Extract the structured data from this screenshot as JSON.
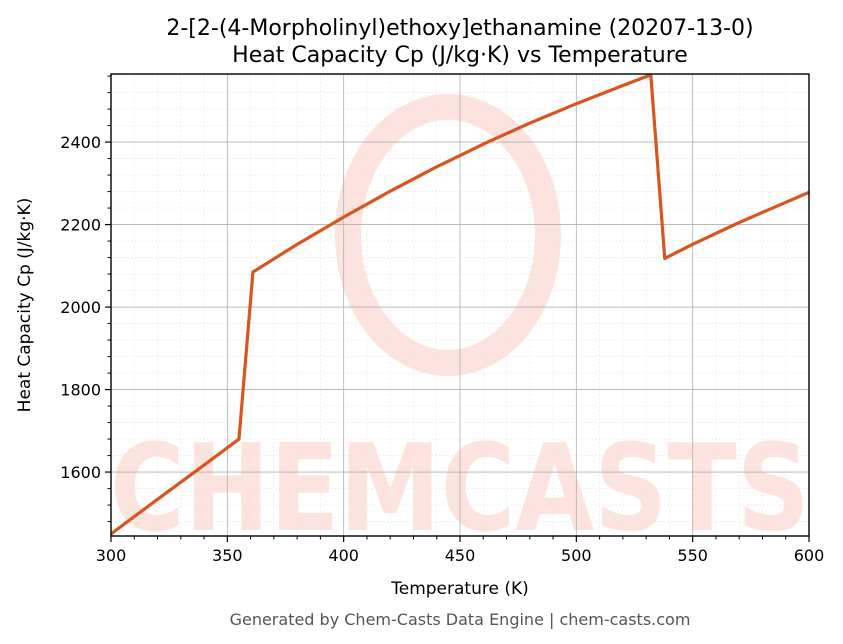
{
  "chart_data": {
    "type": "line",
    "title": "2-[2-(4-Morpholinyl)ethoxy]ethanamine (20207-13-0)",
    "subtitle": "Heat Capacity Cp (J/kg·K) vs Temperature",
    "xlabel": "Temperature (K)",
    "ylabel": "Heat Capacity Cp (J/kg·K)",
    "xlim": [
      300,
      600
    ],
    "ylim": [
      1445,
      2565
    ],
    "x_ticks": [
      300,
      350,
      400,
      450,
      500,
      550,
      600
    ],
    "y_ticks": [
      1600,
      1800,
      2000,
      2200,
      2400
    ],
    "grid": true,
    "line_color": "#d9541e",
    "series": [
      {
        "x": [
          300,
          320,
          340,
          355,
          361,
          380,
          400,
          420,
          440,
          460,
          480,
          500,
          520,
          532,
          538,
          550,
          570,
          590,
          600
        ],
        "values": [
          1450,
          1534,
          1617,
          1680,
          2085,
          2152,
          2218,
          2281,
          2340,
          2395,
          2446,
          2493,
          2537,
          2563,
          2118,
          2152,
          2205,
          2254,
          2278
        ]
      }
    ],
    "watermark": "CHEMCASTS"
  },
  "footer": "Generated by Chem-Casts Data Engine | chem-casts.com"
}
